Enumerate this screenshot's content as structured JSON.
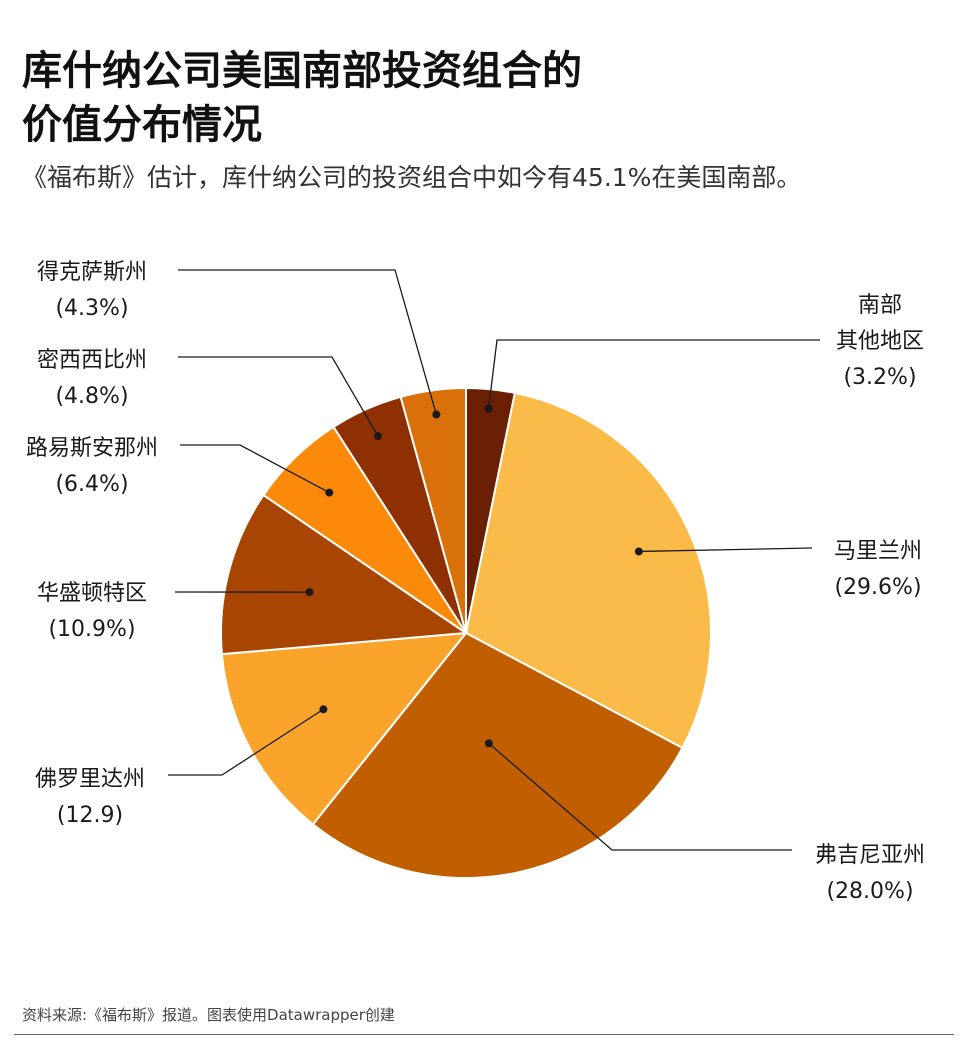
{
  "title_lines": [
    "库什纳公司美国南部投资组合的",
    "价值分布情况"
  ],
  "subtitle": "《福布斯》估计，库什纳公司的投资组合中如今有45.1%在美国南部。",
  "source": "资料来源:《福布斯》报道。图表使用Datawrapper创建",
  "chart_data": {
    "type": "pie",
    "title": "库什纳公司美国南部投资组合的价值分布情况",
    "subtitle": "《福布斯》估计，库什纳公司的投资组合中如今有45.1%在美国南部。",
    "slices": [
      {
        "name": "南部其他地区",
        "label_lines": [
          "南部",
          "其他地区",
          "(3.2%)"
        ],
        "value": 3.2,
        "color": "#6b1f05"
      },
      {
        "name": "马里兰州",
        "label_lines": [
          "马里兰州",
          "(29.6%)"
        ],
        "value": 29.6,
        "color": "#fbbb48"
      },
      {
        "name": "弗吉尼亚州",
        "label_lines": [
          "弗吉尼亚州",
          "(28.0%)"
        ],
        "value": 28.0,
        "color": "#c05e00"
      },
      {
        "name": "佛罗里达州",
        "label_lines": [
          "佛罗里达州",
          "(12.9)"
        ],
        "value": 12.9,
        "color": "#fba42c"
      },
      {
        "name": "华盛顿特区",
        "label_lines": [
          "华盛顿特区",
          "(10.9%)"
        ],
        "value": 10.9,
        "color": "#a84502"
      },
      {
        "name": "路易斯安那州",
        "label_lines": [
          "路易斯安那州",
          "(6.4%)"
        ],
        "value": 6.4,
        "color": "#fb8a0a"
      },
      {
        "name": "密西西比州",
        "label_lines": [
          "密西西比州",
          "(4.8%)"
        ],
        "value": 4.8,
        "color": "#8e3002"
      },
      {
        "name": "得克萨斯州",
        "label_lines": [
          "得克萨斯州",
          "(4.3%)"
        ],
        "value": 4.3,
        "color": "#d9700a"
      }
    ]
  }
}
